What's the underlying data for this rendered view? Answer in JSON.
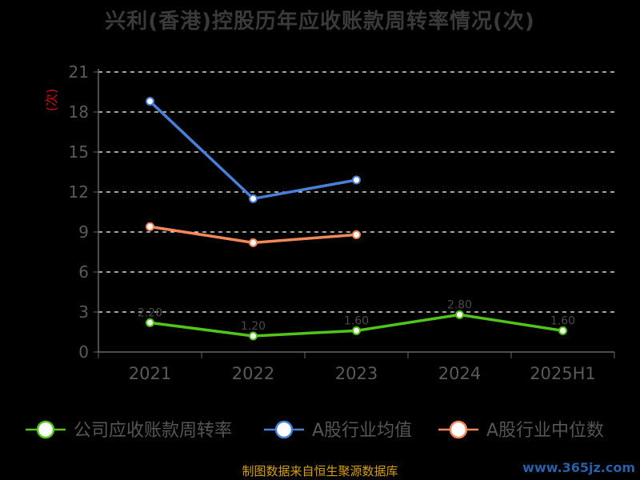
{
  "title": "兴利(香港)控股历年应收账款周转率情况(次)",
  "footer": "制图数据来自恒生聚源数据库",
  "watermark": "www.365jz.com",
  "chart_data": {
    "type": "line",
    "title": "兴利(香港)控股历年应收账款周转率情况(次)",
    "ylabel": "(次)",
    "categories": [
      "2021",
      "2022",
      "2023",
      "2024",
      "2025H1"
    ],
    "ylim": [
      0,
      21
    ],
    "yticks": [
      0,
      3,
      6,
      9,
      12,
      15,
      18,
      21
    ],
    "grid": true,
    "legend_position": "bottom",
    "series": [
      {
        "name": "公司应收账款周转率",
        "color": "#52c41a",
        "values": [
          2.2,
          1.2,
          1.6,
          2.8,
          1.6
        ]
      },
      {
        "name": "A股行业均值",
        "color": "#4a7fd8",
        "values": [
          18.8,
          11.5,
          12.9,
          null,
          null
        ]
      },
      {
        "name": "A股行业中位数",
        "color": "#f2885a",
        "values": [
          9.4,
          8.2,
          8.8,
          null,
          null
        ]
      }
    ]
  }
}
